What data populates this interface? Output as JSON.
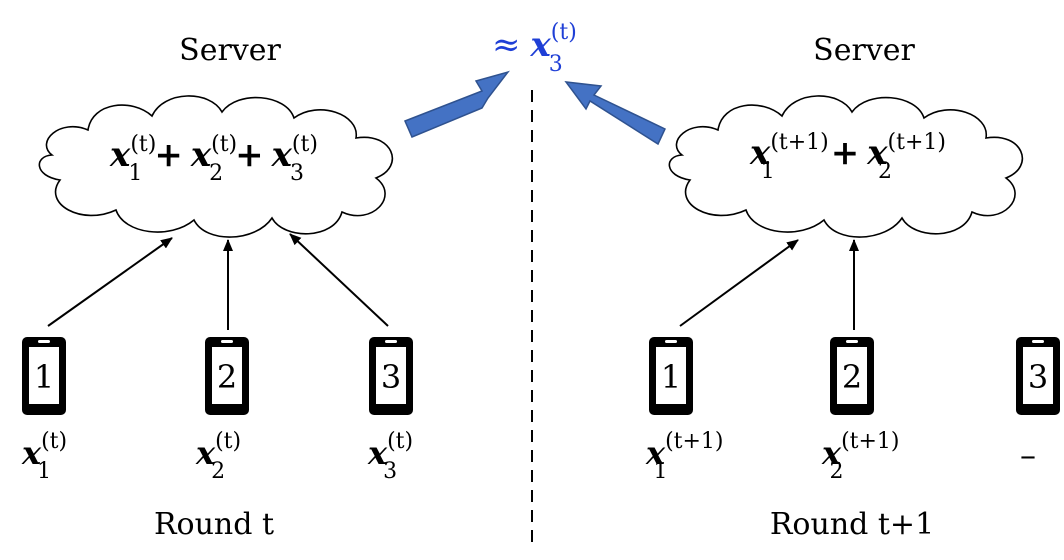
{
  "colors": {
    "ink": "#000000",
    "accent": "#1f3fd6",
    "arrow_fill": "#4472c4",
    "arrow_stroke": "#2f528f"
  },
  "approx": {
    "symbol": "≈",
    "var": "x",
    "sub": "3",
    "sup": "(t)"
  },
  "rounds": [
    {
      "server_label": "Server",
      "round_label": "Round t",
      "sum_terms": [
        {
          "var": "x",
          "sub": "1",
          "sup": "(t)"
        },
        {
          "var": "x",
          "sub": "2",
          "sup": "(t)"
        },
        {
          "var": "x",
          "sub": "3",
          "sup": "(t)"
        }
      ],
      "plus": "+",
      "devices": [
        {
          "number": "1",
          "var": "x",
          "sub": "1",
          "sup": "(t)"
        },
        {
          "number": "2",
          "var": "x",
          "sub": "2",
          "sup": "(t)"
        },
        {
          "number": "3",
          "var": "x",
          "sub": "3",
          "sup": "(t)"
        }
      ]
    },
    {
      "server_label": "Server",
      "round_label": "Round t+1",
      "sum_terms": [
        {
          "var": "x",
          "sub": "1",
          "sup": "(t+1)"
        },
        {
          "var": "x",
          "sub": "2",
          "sup": "(t+1)"
        }
      ],
      "plus": "+",
      "devices": [
        {
          "number": "1",
          "var": "x",
          "sub": "1",
          "sup": "(t+1)"
        },
        {
          "number": "2",
          "var": "x",
          "sub": "2",
          "sup": "(t+1)"
        },
        {
          "number": "3",
          "dropped": "–"
        }
      ]
    }
  ]
}
